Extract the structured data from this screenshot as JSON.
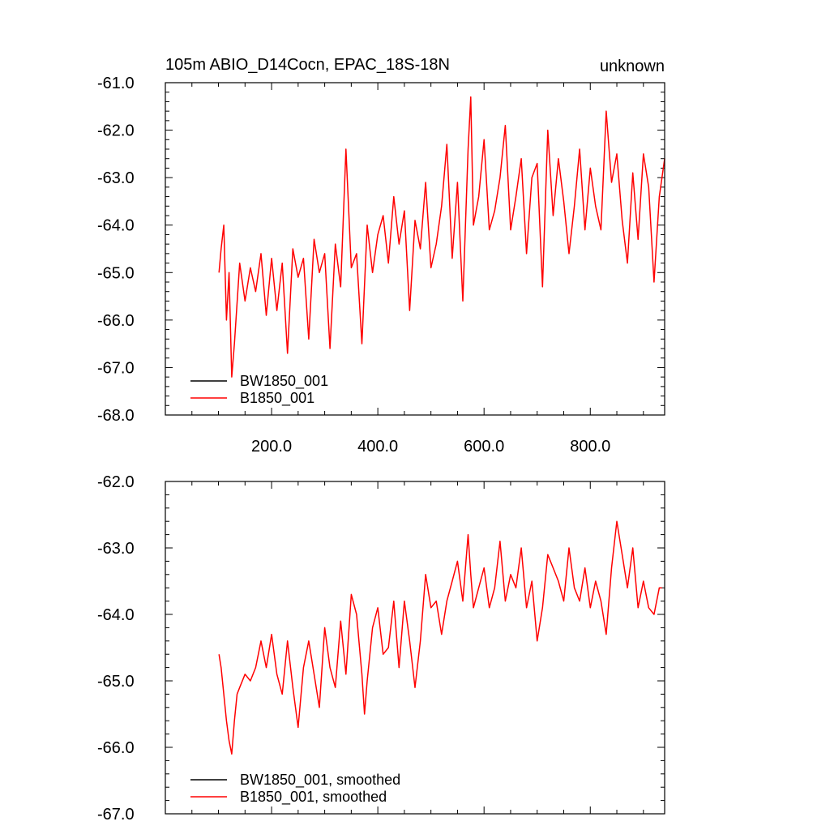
{
  "colors": {
    "background": "#ffffff",
    "frame": "#000000",
    "BW1850_001": "#000000",
    "B1850_001": "#ff0000"
  },
  "top_panel": {
    "title_left": "105m ABIO_D14Cocn, EPAC_18S-18N",
    "title_right": "unknown",
    "y_tick_labels": [
      "-61.0",
      "-62.0",
      "-63.0",
      "-64.0",
      "-65.0",
      "-66.0",
      "-67.0",
      "-68.0"
    ],
    "x_tick_labels": [
      "200.0",
      "400.0",
      "600.0",
      "800.0"
    ],
    "legend": [
      "BW1850_001",
      "B1850_001"
    ]
  },
  "bottom_panel": {
    "y_tick_labels": [
      "-62.0",
      "-63.0",
      "-64.0",
      "-65.0",
      "-66.0",
      "-67.0"
    ],
    "legend": [
      "BW1850_001, smoothed",
      "B1850_001, smoothed"
    ]
  },
  "chart_data": [
    {
      "type": "line",
      "title": "105m ABIO_D14Cocn, EPAC_18S-18N",
      "subtitle": "unknown",
      "xlim": [
        0,
        940
      ],
      "ylim": [
        -68,
        -61
      ],
      "x_ticks": [
        200,
        400,
        600,
        800
      ],
      "y_ticks": [
        -61,
        -62,
        -63,
        -64,
        -65,
        -66,
        -67,
        -68
      ],
      "grid": false,
      "legend_position": "bottom-left",
      "series": [
        {
          "name": "BW1850_001",
          "color": "#000000",
          "x": [],
          "y": []
        },
        {
          "name": "B1850_001",
          "color": "#ff0000",
          "x": [
            101,
            105,
            110,
            115,
            120,
            125,
            130,
            140,
            150,
            160,
            170,
            180,
            190,
            200,
            210,
            220,
            230,
            240,
            250,
            260,
            270,
            280,
            290,
            300,
            310,
            320,
            330,
            340,
            350,
            360,
            370,
            380,
            390,
            400,
            410,
            420,
            430,
            440,
            450,
            460,
            470,
            480,
            490,
            500,
            510,
            520,
            530,
            540,
            550,
            560,
            570,
            575,
            580,
            590,
            600,
            610,
            620,
            630,
            640,
            650,
            660,
            670,
            680,
            690,
            700,
            710,
            720,
            730,
            740,
            750,
            760,
            770,
            780,
            790,
            800,
            810,
            820,
            830,
            840,
            850,
            860,
            870,
            880,
            890,
            900,
            910,
            920,
            930,
            940
          ],
          "y": [
            -65.0,
            -64.5,
            -64.0,
            -66.0,
            -65.0,
            -67.2,
            -66.5,
            -64.8,
            -65.6,
            -64.9,
            -65.4,
            -64.6,
            -65.9,
            -64.7,
            -65.8,
            -64.8,
            -66.7,
            -64.5,
            -65.1,
            -64.7,
            -66.4,
            -64.3,
            -65.0,
            -64.6,
            -66.6,
            -64.4,
            -65.3,
            -62.4,
            -64.9,
            -64.6,
            -66.5,
            -64.0,
            -65.0,
            -64.2,
            -63.8,
            -64.8,
            -63.4,
            -64.4,
            -63.7,
            -65.8,
            -63.9,
            -64.5,
            -63.1,
            -64.9,
            -64.4,
            -63.6,
            -62.3,
            -64.7,
            -63.1,
            -65.6,
            -62.4,
            -61.3,
            -64.0,
            -63.4,
            -62.2,
            -64.1,
            -63.7,
            -63.0,
            -61.9,
            -64.1,
            -63.4,
            -62.6,
            -64.6,
            -63.0,
            -62.7,
            -65.3,
            -62.0,
            -63.8,
            -62.6,
            -63.5,
            -64.6,
            -63.6,
            -62.4,
            -64.1,
            -62.8,
            -63.6,
            -64.1,
            -61.6,
            -63.1,
            -62.5,
            -63.9,
            -64.8,
            -62.9,
            -64.3,
            -62.5,
            -63.2,
            -65.2,
            -63.4,
            -62.6
          ]
        }
      ]
    },
    {
      "type": "line",
      "xlim": [
        0,
        940
      ],
      "ylim": [
        -67,
        -62
      ],
      "x_ticks": [
        200,
        400,
        600,
        800
      ],
      "y_ticks": [
        -62,
        -63,
        -64,
        -65,
        -66,
        -67
      ],
      "grid": false,
      "legend_position": "bottom-left",
      "series": [
        {
          "name": "BW1850_001, smoothed",
          "color": "#000000",
          "x": [],
          "y": []
        },
        {
          "name": "B1850_001, smoothed",
          "color": "#ff0000",
          "x": [
            101,
            105,
            110,
            115,
            120,
            125,
            130,
            135,
            140,
            150,
            160,
            170,
            180,
            190,
            200,
            210,
            220,
            230,
            240,
            250,
            260,
            270,
            280,
            290,
            300,
            310,
            320,
            330,
            340,
            350,
            360,
            370,
            375,
            380,
            390,
            400,
            410,
            420,
            430,
            440,
            450,
            460,
            470,
            480,
            490,
            500,
            510,
            520,
            530,
            540,
            550,
            560,
            570,
            575,
            580,
            590,
            600,
            610,
            620,
            630,
            640,
            650,
            660,
            670,
            680,
            690,
            700,
            710,
            720,
            730,
            740,
            750,
            760,
            770,
            780,
            790,
            800,
            810,
            820,
            830,
            840,
            850,
            860,
            870,
            880,
            890,
            900,
            910,
            920,
            930,
            935
          ],
          "y": [
            -64.6,
            -64.8,
            -65.2,
            -65.6,
            -65.9,
            -66.1,
            -65.6,
            -65.2,
            -65.1,
            -64.9,
            -65.0,
            -64.8,
            -64.4,
            -64.8,
            -64.3,
            -64.9,
            -65.2,
            -64.4,
            -65.1,
            -65.7,
            -64.8,
            -64.4,
            -64.9,
            -65.4,
            -64.2,
            -64.8,
            -65.1,
            -64.1,
            -64.9,
            -63.7,
            -64.0,
            -64.9,
            -65.5,
            -65.0,
            -64.2,
            -63.9,
            -64.6,
            -64.5,
            -63.8,
            -64.8,
            -63.8,
            -64.4,
            -65.1,
            -64.4,
            -63.4,
            -63.9,
            -63.8,
            -64.3,
            -63.8,
            -63.5,
            -63.2,
            -63.8,
            -62.8,
            -63.4,
            -63.9,
            -63.6,
            -63.3,
            -63.9,
            -63.6,
            -62.9,
            -63.8,
            -63.4,
            -63.6,
            -63.0,
            -63.9,
            -63.5,
            -64.4,
            -63.9,
            -63.1,
            -63.3,
            -63.5,
            -63.8,
            -63.0,
            -63.6,
            -63.8,
            -63.3,
            -63.9,
            -63.5,
            -63.8,
            -64.3,
            -63.3,
            -62.6,
            -63.1,
            -63.6,
            -63.0,
            -63.9,
            -63.5,
            -63.9,
            -64.0,
            -63.6,
            -63.6
          ]
        }
      ]
    }
  ]
}
